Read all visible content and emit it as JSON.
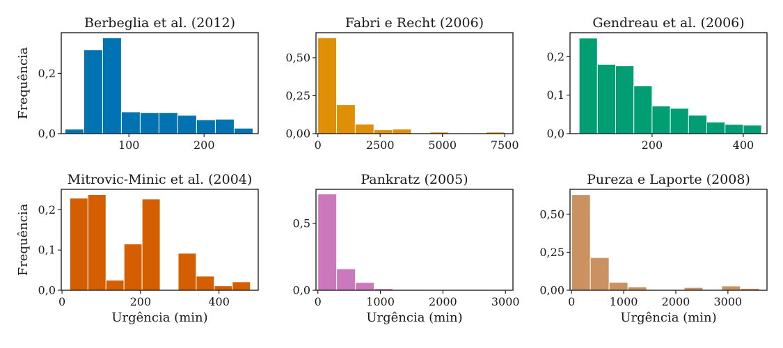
{
  "chart_data": [
    {
      "type": "bar",
      "title": "Berbeglia et al. (2012)",
      "xlabel": "",
      "ylabel": "Frequência",
      "color": "#0173b2",
      "xlim": [
        10,
        272
      ],
      "ylim": [
        0,
        0.335
      ],
      "bins": [
        [
          15,
          40,
          0.015
        ],
        [
          40,
          65,
          0.278
        ],
        [
          65,
          90,
          0.318
        ],
        [
          90,
          115,
          0.072
        ],
        [
          115,
          140,
          0.07
        ],
        [
          140,
          165,
          0.07
        ],
        [
          165,
          190,
          0.061
        ],
        [
          190,
          215,
          0.046
        ],
        [
          215,
          240,
          0.048
        ],
        [
          240,
          265,
          0.018
        ]
      ],
      "xticks": [
        {
          "v": 100,
          "label": "100"
        },
        {
          "v": 200,
          "label": "200"
        }
      ],
      "yticks": [
        {
          "v": 0,
          "label": "0,0"
        },
        {
          "v": 0.2,
          "label": "0,2"
        }
      ]
    },
    {
      "type": "bar",
      "title": "Fabri e Recht (2006)",
      "xlabel": "",
      "ylabel": "",
      "color": "#de8f05",
      "xlim": [
        -75,
        7830
      ],
      "ylim": [
        0,
        0.665
      ],
      "bins": [
        [
          0,
          750,
          0.632
        ],
        [
          750,
          1500,
          0.19
        ],
        [
          1500,
          2250,
          0.063
        ],
        [
          2250,
          3000,
          0.025
        ],
        [
          3000,
          3750,
          0.03
        ],
        [
          3750,
          4500,
          0.002
        ],
        [
          4500,
          5250,
          0.01
        ],
        [
          5250,
          6000,
          0.003
        ],
        [
          6000,
          6750,
          0.002
        ],
        [
          6750,
          7500,
          0.01
        ]
      ],
      "xticks": [
        {
          "v": 0,
          "label": "0"
        },
        {
          "v": 2500,
          "label": "2500"
        },
        {
          "v": 5000,
          "label": "5000"
        },
        {
          "v": 7500,
          "label": "7500"
        }
      ],
      "yticks": [
        {
          "v": 0,
          "label": "0,00"
        },
        {
          "v": 0.25,
          "label": "0,25"
        },
        {
          "v": 0.5,
          "label": "0,50"
        }
      ]
    },
    {
      "type": "bar",
      "title": "Gendreau et al. (2006)",
      "xlabel": "",
      "ylabel": "",
      "color": "#029e73",
      "xlim": [
        20,
        452
      ],
      "ylim": [
        0,
        0.262
      ],
      "bins": [
        [
          40,
          80,
          0.248
        ],
        [
          80,
          120,
          0.18
        ],
        [
          120,
          160,
          0.176
        ],
        [
          160,
          200,
          0.124
        ],
        [
          200,
          240,
          0.072
        ],
        [
          240,
          280,
          0.066
        ],
        [
          280,
          320,
          0.048
        ],
        [
          320,
          360,
          0.03
        ],
        [
          360,
          400,
          0.024
        ],
        [
          400,
          440,
          0.022
        ]
      ],
      "xticks": [
        {
          "v": 200,
          "label": "200"
        },
        {
          "v": 400,
          "label": "400"
        }
      ],
      "yticks": [
        {
          "v": 0,
          "label": "0,0"
        },
        {
          "v": 0.1,
          "label": "0,1"
        },
        {
          "v": 0.2,
          "label": "0,2"
        }
      ]
    },
    {
      "type": "bar",
      "title": "Mitrovic-Minic et al. (2004)",
      "xlabel": "Urgência (min)",
      "ylabel": "Frequência",
      "color": "#d55e00",
      "xlim": [
        -2,
        500
      ],
      "ylim": [
        0,
        0.251
      ],
      "bins": [
        [
          20,
          66,
          0.229
        ],
        [
          66,
          112,
          0.238
        ],
        [
          112,
          158,
          0.025
        ],
        [
          158,
          204,
          0.115
        ],
        [
          204,
          250,
          0.227
        ],
        [
          250,
          296,
          0.0
        ],
        [
          296,
          342,
          0.092
        ],
        [
          342,
          388,
          0.035
        ],
        [
          388,
          434,
          0.011
        ],
        [
          434,
          480,
          0.021
        ]
      ],
      "xticks": [
        {
          "v": 0,
          "label": "0"
        },
        {
          "v": 200,
          "label": "200"
        },
        {
          "v": 400,
          "label": "400"
        }
      ],
      "yticks": [
        {
          "v": 0,
          "label": "0,0"
        },
        {
          "v": 0.1,
          "label": "0,1"
        },
        {
          "v": 0.2,
          "label": "0,2"
        }
      ]
    },
    {
      "type": "bar",
      "title": "Pankratz (2005)",
      "xlabel": "Urgência (min)",
      "ylabel": "",
      "color": "#cc78bc",
      "xlim": [
        -30,
        3120
      ],
      "ylim": [
        0,
        0.755
      ],
      "bins": [
        [
          0,
          300,
          0.72
        ],
        [
          300,
          600,
          0.16
        ],
        [
          600,
          900,
          0.058
        ],
        [
          900,
          1200,
          0.012
        ],
        [
          1200,
          1500,
          0.003
        ],
        [
          1500,
          1800,
          0.002
        ],
        [
          1800,
          2100,
          0.001
        ],
        [
          2100,
          2400,
          0.001
        ],
        [
          2400,
          2700,
          0.001
        ],
        [
          2700,
          3000,
          0.001
        ]
      ],
      "xticks": [
        {
          "v": 0,
          "label": "0"
        },
        {
          "v": 1000,
          "label": "1000"
        },
        {
          "v": 2000,
          "label": "2000"
        },
        {
          "v": 3000,
          "label": "3000"
        }
      ],
      "yticks": [
        {
          "v": 0,
          "label": "0,0"
        },
        {
          "v": 0.5,
          "label": "0,5"
        }
      ]
    },
    {
      "type": "bar",
      "title": "Pureza e Laporte (2008)",
      "xlabel": "Urgência (min)",
      "ylabel": "",
      "color": "#ca9161",
      "xlim": [
        -30,
        3750
      ],
      "ylim": [
        0,
        0.665
      ],
      "bins": [
        [
          0,
          360,
          0.63
        ],
        [
          360,
          720,
          0.215
        ],
        [
          720,
          1080,
          0.052
        ],
        [
          1080,
          1440,
          0.022
        ],
        [
          1440,
          1800,
          0.003
        ],
        [
          1800,
          2160,
          0.003
        ],
        [
          2160,
          2520,
          0.018
        ],
        [
          2520,
          2880,
          0.004
        ],
        [
          2880,
          3240,
          0.028
        ],
        [
          3240,
          3600,
          0.012
        ]
      ],
      "xticks": [
        {
          "v": 0,
          "label": "0"
        },
        {
          "v": 1000,
          "label": "1000"
        },
        {
          "v": 2000,
          "label": "2000"
        },
        {
          "v": 3000,
          "label": "3000"
        }
      ],
      "yticks": [
        {
          "v": 0,
          "label": "0,00"
        },
        {
          "v": 0.25,
          "label": "0,25"
        },
        {
          "v": 0.5,
          "label": "0,50"
        }
      ]
    }
  ]
}
